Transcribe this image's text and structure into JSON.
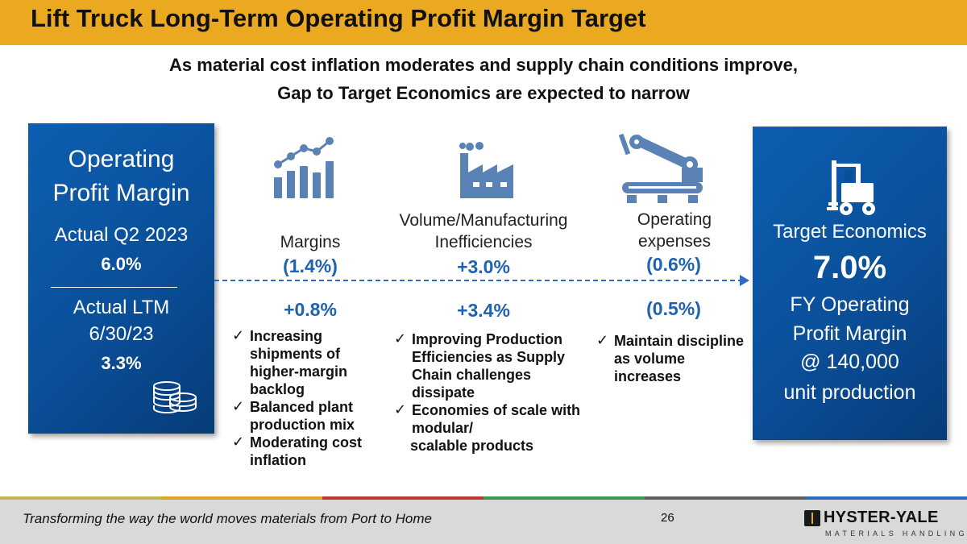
{
  "slide": {
    "title": "Lift Truck Long-Term Operating Profit Margin Target",
    "subtitle_line1": "As material cost inflation moderates and supply chain conditions improve,",
    "subtitle_line2": "Gap to Target Economics are expected to narrow"
  },
  "left_panel": {
    "title_line1": "Operating",
    "title_line2": "Profit Margin",
    "q2_label": "Actual Q2 2023",
    "q2_value": "6.0%",
    "ltm_label": "Actual LTM",
    "ltm_date": "6/30/23",
    "ltm_value": "3.3%",
    "icon": "coins-icon"
  },
  "columns": [
    {
      "label": "Margins",
      "q2_value": "(1.4%)",
      "ltm_value": "+0.8%",
      "icon": "bar-chart-trend-icon",
      "bullets": [
        "Increasing shipments of higher-margin backlog",
        "Balanced plant production mix",
        "Moderating cost inflation"
      ]
    },
    {
      "label_line1": "Volume/Manufacturing",
      "label_line2": "Inefficiencies",
      "q2_value": "+3.0%",
      "ltm_value": "+3.4%",
      "icon": "factory-icon",
      "bullets": [
        "Improving Production Efficiencies as Supply Chain challenges dissipate",
        "Economies of scale with modular/",
        "scalable products"
      ]
    },
    {
      "label_line1": "Operating",
      "label_line2": "expenses",
      "q2_value": "(0.6%)",
      "ltm_value": "(0.5%)",
      "icon": "robotic-arm-icon",
      "bullets": [
        "Maintain discipline as volume increases"
      ]
    }
  ],
  "right_panel": {
    "label": "Target Economics",
    "value": "7.0%",
    "line1": "FY Operating",
    "line2": "Profit Margin",
    "line3": "@ 140,000",
    "line4": "unit production",
    "icon": "forklift-icon"
  },
  "footer": {
    "tagline": "Transforming the way the world moves materials from Port to Home",
    "page_number": "26",
    "logo_text": "HYSTER-YALE",
    "logo_subtext": "MATERIALS HANDLING"
  },
  "colors": {
    "title_bar": "#EBA921",
    "panel_blue": "#0A4F99",
    "value_blue": "#1F62B0",
    "icon_blue": "#5A82B5",
    "footer_grey": "#D9D9D9"
  }
}
